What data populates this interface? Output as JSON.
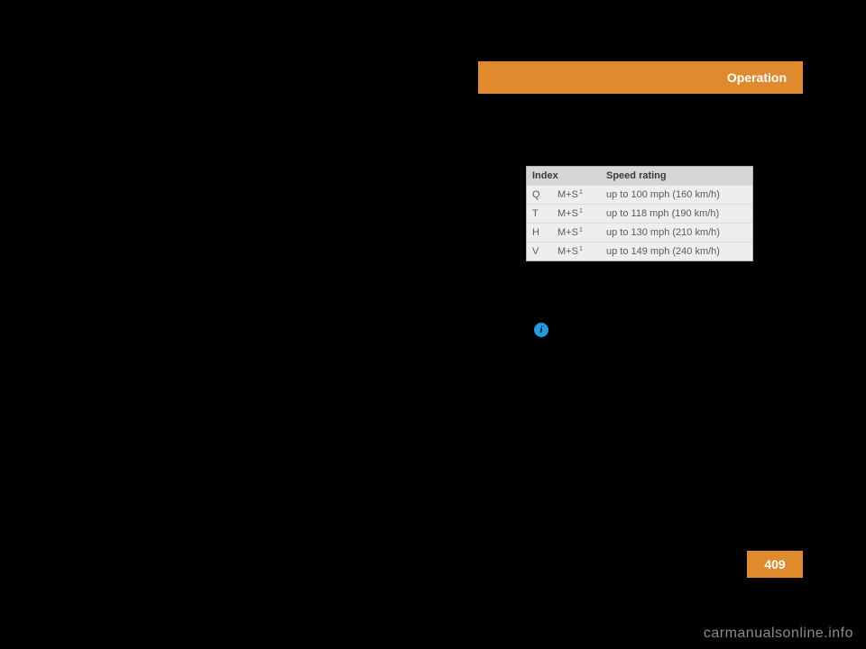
{
  "header": {
    "section": "Operation"
  },
  "table": {
    "type": "table",
    "columns": [
      "Index",
      "Speed rating"
    ],
    "rows": [
      {
        "letter": "Q",
        "code": "M+S",
        "sup": "1",
        "rating": "up to 100 mph (160 km/h)"
      },
      {
        "letter": "T",
        "code": "M+S",
        "sup": "1",
        "rating": "up to 118 mph (190 km/h)"
      },
      {
        "letter": "H",
        "code": "M+S",
        "sup": "1",
        "rating": "up to 130 mph (210 km/h)"
      },
      {
        "letter": "V",
        "code": "M+S",
        "sup": "1",
        "rating": "up to 149 mph (240 km/h)"
      }
    ],
    "header_bg": "#d6d6d6",
    "cell_bg": "#eeeeee",
    "text_color": "#5b5b5b",
    "border_color": "#b0b0b0",
    "font_size": 11
  },
  "info_icon": {
    "glyph": "i",
    "bg": "#1f9be0"
  },
  "accent_color": "#e08a2e",
  "page_number": "409",
  "watermark": "carmanualsonline.info"
}
